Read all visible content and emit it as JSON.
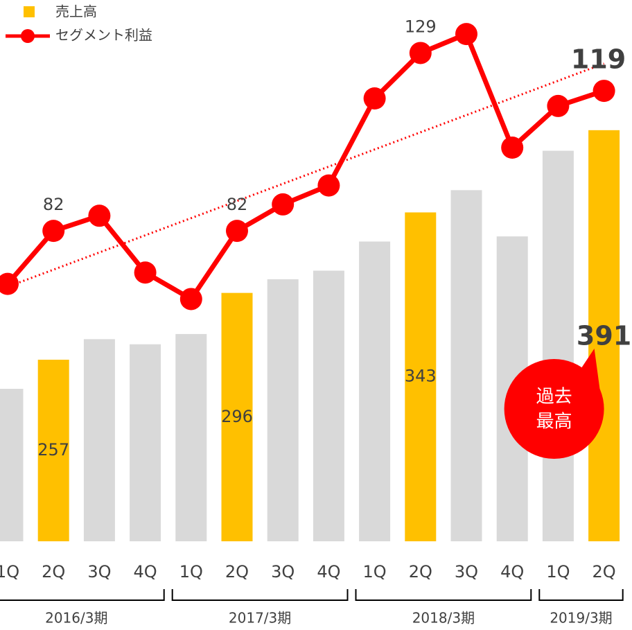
{
  "chart_data": {
    "type": "bar_line",
    "categories": [
      "1Q",
      "2Q",
      "3Q",
      "4Q",
      "1Q",
      "2Q",
      "3Q",
      "4Q",
      "1Q",
      "2Q",
      "3Q",
      "4Q",
      "1Q",
      "2Q"
    ],
    "group_labels": [
      "2016/3期",
      "2017/3期",
      "2018/3期",
      "2019/3期"
    ],
    "series": [
      {
        "name": "売上高",
        "type": "bar",
        "color": "#FFC000",
        "colors": [
          "#D9D9D9",
          "#FFC000",
          "#D9D9D9",
          "#D9D9D9",
          "#D9D9D9",
          "#FFC000",
          "#D9D9D9",
          "#D9D9D9",
          "#D9D9D9",
          "#FFC000",
          "#D9D9D9",
          "#D9D9D9",
          "#D9D9D9",
          "#FFC000"
        ],
        "values": [
          240,
          257,
          269,
          266,
          272,
          296,
          304,
          309,
          326,
          343,
          356,
          329,
          379,
          391
        ],
        "value_labels": [
          null,
          "257",
          null,
          null,
          null,
          "296",
          null,
          null,
          null,
          "343",
          null,
          null,
          null,
          "391"
        ]
      },
      {
        "name": "セグメント利益",
        "type": "line",
        "axis": "y2",
        "color": "#FF0000",
        "values": [
          68,
          82,
          86,
          71,
          64,
          82,
          89,
          94,
          117,
          129,
          134,
          104,
          115,
          119
        ],
        "value_labels": [
          null,
          "82",
          null,
          null,
          null,
          "82",
          null,
          null,
          null,
          "129",
          null,
          null,
          null,
          "119"
        ]
      }
    ],
    "ylim": [
      151,
      467
    ],
    "y2lim": [
      0,
      143
    ],
    "trendline": true,
    "annotation": [
      "過去",
      "最高"
    ]
  }
}
